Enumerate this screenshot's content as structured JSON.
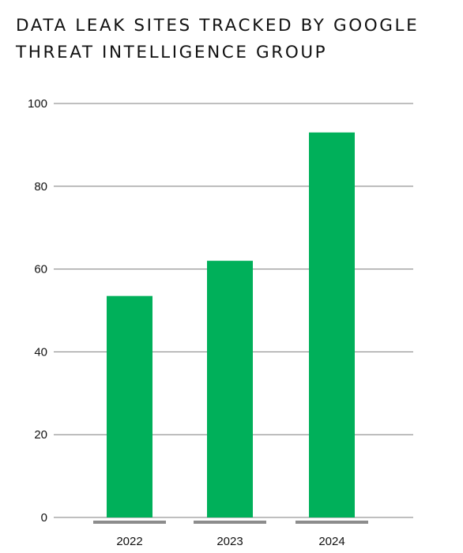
{
  "title_lines": [
    "DATA LEAK SITES TRACKED BY GOOGLE",
    "THREAT INTELLIGENCE GROUP"
  ],
  "colors": {
    "bar": "#00b05a",
    "grid": "#7f7f7f",
    "baseline_marker": "#8c8c8c"
  },
  "chart_data": {
    "type": "bar",
    "title": "DATA LEAK SITES TRACKED BY GOOGLE THREAT INTELLIGENCE GROUP",
    "categories": [
      "2022",
      "2023",
      "2024"
    ],
    "values": [
      53.5,
      62,
      93
    ],
    "xlabel": "",
    "ylabel": "",
    "ylim": [
      0,
      100
    ],
    "yticks": [
      "0",
      "20",
      "40",
      "60",
      "80",
      "100"
    ],
    "grid": true,
    "legend": "none"
  }
}
